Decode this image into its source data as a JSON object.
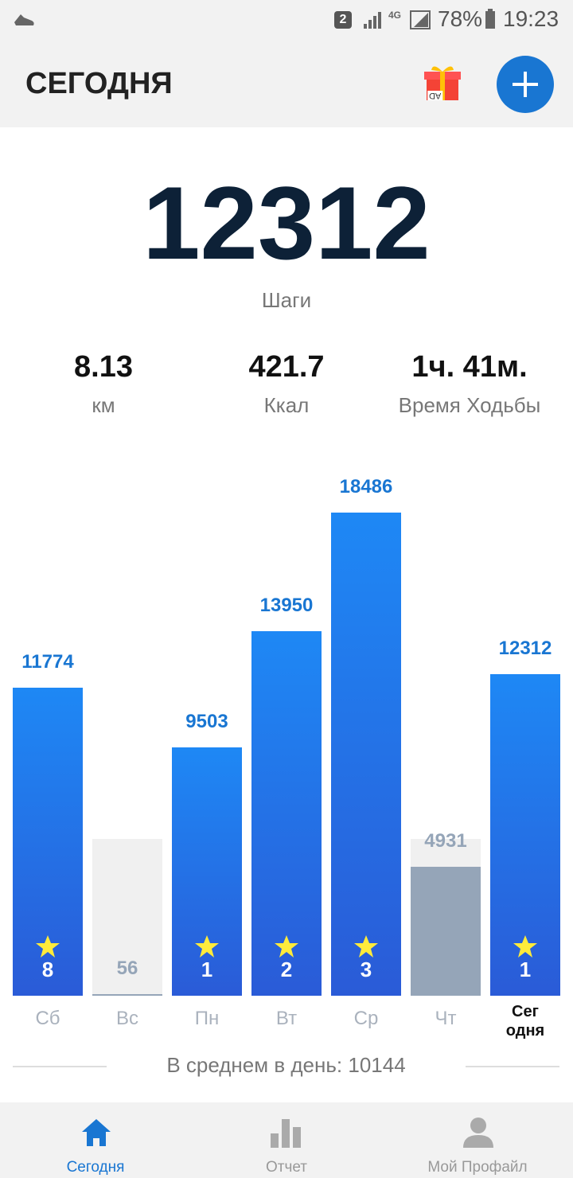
{
  "status_bar": {
    "sim": "2",
    "network": "4G",
    "battery": "78%",
    "time": "19:23"
  },
  "header": {
    "title": "СЕГОДНЯ",
    "ad_label": "AD"
  },
  "summary": {
    "steps": "12312",
    "steps_label": "Шаги",
    "stats": [
      {
        "value": "8.13",
        "label": "км"
      },
      {
        "value": "421.7",
        "label": "Ккал"
      },
      {
        "value": "1ч. 41м.",
        "label": "Время Ходьбы"
      }
    ]
  },
  "chart_data": {
    "type": "bar",
    "categories": [
      "Сб",
      "Вс",
      "Пн",
      "Вт",
      "Ср",
      "Чт",
      "Сег\nодня"
    ],
    "values": [
      11774,
      56,
      9503,
      13950,
      18486,
      4931,
      12312
    ],
    "stars": [
      8,
      null,
      1,
      2,
      3,
      null,
      1
    ],
    "goal": 6000,
    "ylim": [
      0,
      18486
    ],
    "color": "#1e88f5",
    "color_low": "#95a5b8",
    "goal_color": "#f0f0f0",
    "average_label": "В среднем в день:",
    "average": 10144
  },
  "nav": {
    "items": [
      "Сегодня",
      "Отчет",
      "Мой Профайл"
    ],
    "active": 0
  }
}
